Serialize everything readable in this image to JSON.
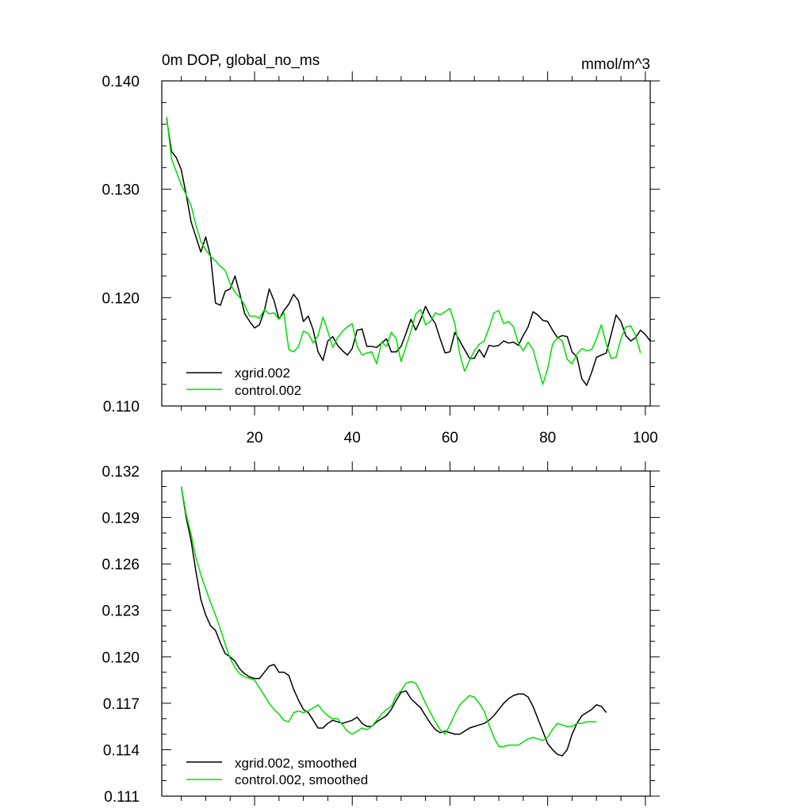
{
  "chart_data": [
    {
      "type": "line",
      "title": "0m DOP, global_no_ms",
      "units": "mmol/m^3",
      "xlabel": "",
      "ylabel": "",
      "xlim": [
        1,
        101
      ],
      "ylim": [
        0.11,
        0.14
      ],
      "xticks": [
        20,
        40,
        60,
        80,
        100
      ],
      "xtick_labels": [
        "20",
        "40",
        "60",
        "80",
        "100"
      ],
      "yticks": [
        0.11,
        0.12,
        0.13,
        0.14
      ],
      "ytick_labels": [
        "0.110",
        "0.120",
        "0.130",
        "0.140"
      ],
      "grid": false,
      "legend_position": "bottom-left",
      "x_start": 2,
      "series": [
        {
          "name": "xgrid.002",
          "color": "#000000",
          "values": [
            0.1365,
            0.1335,
            0.1329,
            0.1318,
            0.1295,
            0.127,
            0.1256,
            0.1242,
            0.1256,
            0.1238,
            0.1195,
            0.1193,
            0.1206,
            0.1208,
            0.122,
            0.1203,
            0.1185,
            0.1178,
            0.1172,
            0.1175,
            0.1188,
            0.1208,
            0.1197,
            0.118,
            0.1188,
            0.1194,
            0.1203,
            0.1197,
            0.1178,
            0.1183,
            0.117,
            0.115,
            0.1142,
            0.116,
            0.1164,
            0.1156,
            0.1151,
            0.1147,
            0.1153,
            0.117,
            0.1171,
            0.1155,
            0.1155,
            0.1154,
            0.1158,
            0.1162,
            0.115,
            0.115,
            0.1155,
            0.1167,
            0.118,
            0.117,
            0.118,
            0.1192,
            0.1183,
            0.1176,
            0.1162,
            0.1149,
            0.115,
            0.1168,
            0.116,
            0.1152,
            0.1144,
            0.1144,
            0.1152,
            0.1145,
            0.1156,
            0.1155,
            0.1156,
            0.116,
            0.1158,
            0.1159,
            0.1156,
            0.1165,
            0.1173,
            0.1187,
            0.1184,
            0.1179,
            0.1178,
            0.117,
            0.1163,
            0.1165,
            0.1164,
            0.115,
            0.1145,
            0.1125,
            0.1119,
            0.1131,
            0.1145,
            0.1147,
            0.1149,
            0.1166,
            0.1184,
            0.1178,
            0.1165,
            0.116,
            0.1163,
            0.117,
            0.1166,
            0.116
          ]
        },
        {
          "name": "control.002",
          "color": "#00dd00",
          "values": [
            0.1367,
            0.1328,
            0.1316,
            0.1304,
            0.1295,
            0.1285,
            0.1267,
            0.1252,
            0.1244,
            0.1238,
            0.1234,
            0.1229,
            0.1225,
            0.1213,
            0.1205,
            0.12,
            0.1193,
            0.1183,
            0.1183,
            0.1181,
            0.1189,
            0.1185,
            0.1186,
            0.118,
            0.1186,
            0.1152,
            0.115,
            0.1155,
            0.1169,
            0.1167,
            0.1158,
            0.1165,
            0.1182,
            0.1169,
            0.1154,
            0.1163,
            0.1169,
            0.1173,
            0.1176,
            0.1155,
            0.1147,
            0.1149,
            0.115,
            0.1139,
            0.1159,
            0.1155,
            0.1168,
            0.1162,
            0.1141,
            0.1155,
            0.1169,
            0.1185,
            0.1189,
            0.1175,
            0.1178,
            0.1186,
            0.1184,
            0.1187,
            0.119,
            0.1176,
            0.1148,
            0.1132,
            0.1142,
            0.1151,
            0.1157,
            0.116,
            0.1172,
            0.1186,
            0.1188,
            0.1176,
            0.1178,
            0.1173,
            0.1158,
            0.1151,
            0.1159,
            0.1152,
            0.1136,
            0.112,
            0.1134,
            0.1157,
            0.1163,
            0.116,
            0.1143,
            0.1139,
            0.1148,
            0.1153,
            0.1151,
            0.1152,
            0.1162,
            0.1175,
            0.1157,
            0.1144,
            0.1145,
            0.1162,
            0.1173,
            0.1174,
            0.1165,
            0.1149
          ]
        }
      ]
    },
    {
      "type": "line",
      "title": "",
      "xlabel": "",
      "ylabel": "",
      "xlim": [
        1,
        101
      ],
      "ylim": [
        0.111,
        0.132
      ],
      "xticks": [
        20,
        40,
        60,
        80,
        100
      ],
      "xtick_labels": [],
      "yticks": [
        0.111,
        0.114,
        0.117,
        0.12,
        0.123,
        0.126,
        0.129,
        0.132
      ],
      "ytick_labels": [
        "0.111",
        "0.114",
        "0.117",
        "0.120",
        "0.123",
        "0.126",
        "0.129",
        "0.132"
      ],
      "grid": false,
      "legend_position": "bottom-left",
      "x_start": 5,
      "series": [
        {
          "name": "xgrid.002, smoothed",
          "color": "#000000",
          "values": [
            0.131,
            0.129,
            0.1275,
            0.1255,
            0.1237,
            0.1227,
            0.122,
            0.1217,
            0.1209,
            0.1202,
            0.12,
            0.1197,
            0.1192,
            0.1189,
            0.1187,
            0.1186,
            0.1186,
            0.119,
            0.1194,
            0.1195,
            0.119,
            0.119,
            0.1188,
            0.1179,
            0.1172,
            0.1166,
            0.1164,
            0.1159,
            0.1154,
            0.1154,
            0.1157,
            0.1159,
            0.1158,
            0.1157,
            0.1158,
            0.1159,
            0.1161,
            0.1157,
            0.1155,
            0.1155,
            0.1158,
            0.116,
            0.1162,
            0.1166,
            0.1172,
            0.1177,
            0.1178,
            0.1173,
            0.117,
            0.1167,
            0.1162,
            0.1157,
            0.1153,
            0.1151,
            0.1152,
            0.1151,
            0.115,
            0.115,
            0.1152,
            0.1154,
            0.1155,
            0.1156,
            0.1157,
            0.1159,
            0.1162,
            0.1166,
            0.117,
            0.1173,
            0.1175,
            0.1176,
            0.1176,
            0.1174,
            0.1168,
            0.116,
            0.1152,
            0.1144,
            0.114,
            0.1137,
            0.1136,
            0.114,
            0.115,
            0.1157,
            0.1162,
            0.1164,
            0.1166,
            0.1169,
            0.1168,
            0.1164
          ]
        },
        {
          "name": "control.002, smoothed",
          "color": "#00dd00",
          "values": [
            0.131,
            0.1292,
            0.1279,
            0.1264,
            0.1253,
            0.1244,
            0.1235,
            0.1227,
            0.1218,
            0.1208,
            0.1199,
            0.1193,
            0.1189,
            0.1187,
            0.1186,
            0.1185,
            0.118,
            0.1175,
            0.117,
            0.1166,
            0.1163,
            0.1159,
            0.1158,
            0.1164,
            0.1165,
            0.1164,
            0.1165,
            0.1167,
            0.1169,
            0.1165,
            0.1162,
            0.116,
            0.116,
            0.1156,
            0.1152,
            0.115,
            0.1152,
            0.1154,
            0.1153,
            0.1155,
            0.1159,
            0.1163,
            0.1166,
            0.1168,
            0.1175,
            0.1178,
            0.1183,
            0.1184,
            0.1183,
            0.1177,
            0.117,
            0.1164,
            0.1158,
            0.1153,
            0.115,
            0.1156,
            0.1163,
            0.1169,
            0.1172,
            0.1175,
            0.1174,
            0.117,
            0.1165,
            0.1156,
            0.1148,
            0.1142,
            0.1142,
            0.1143,
            0.1143,
            0.1143,
            0.1145,
            0.1147,
            0.1148,
            0.1147,
            0.1146,
            0.1148,
            0.1153,
            0.1157,
            0.1156,
            0.1155,
            0.1155,
            0.1157,
            0.1157,
            0.1158,
            0.1158,
            0.1158
          ]
        }
      ]
    }
  ]
}
